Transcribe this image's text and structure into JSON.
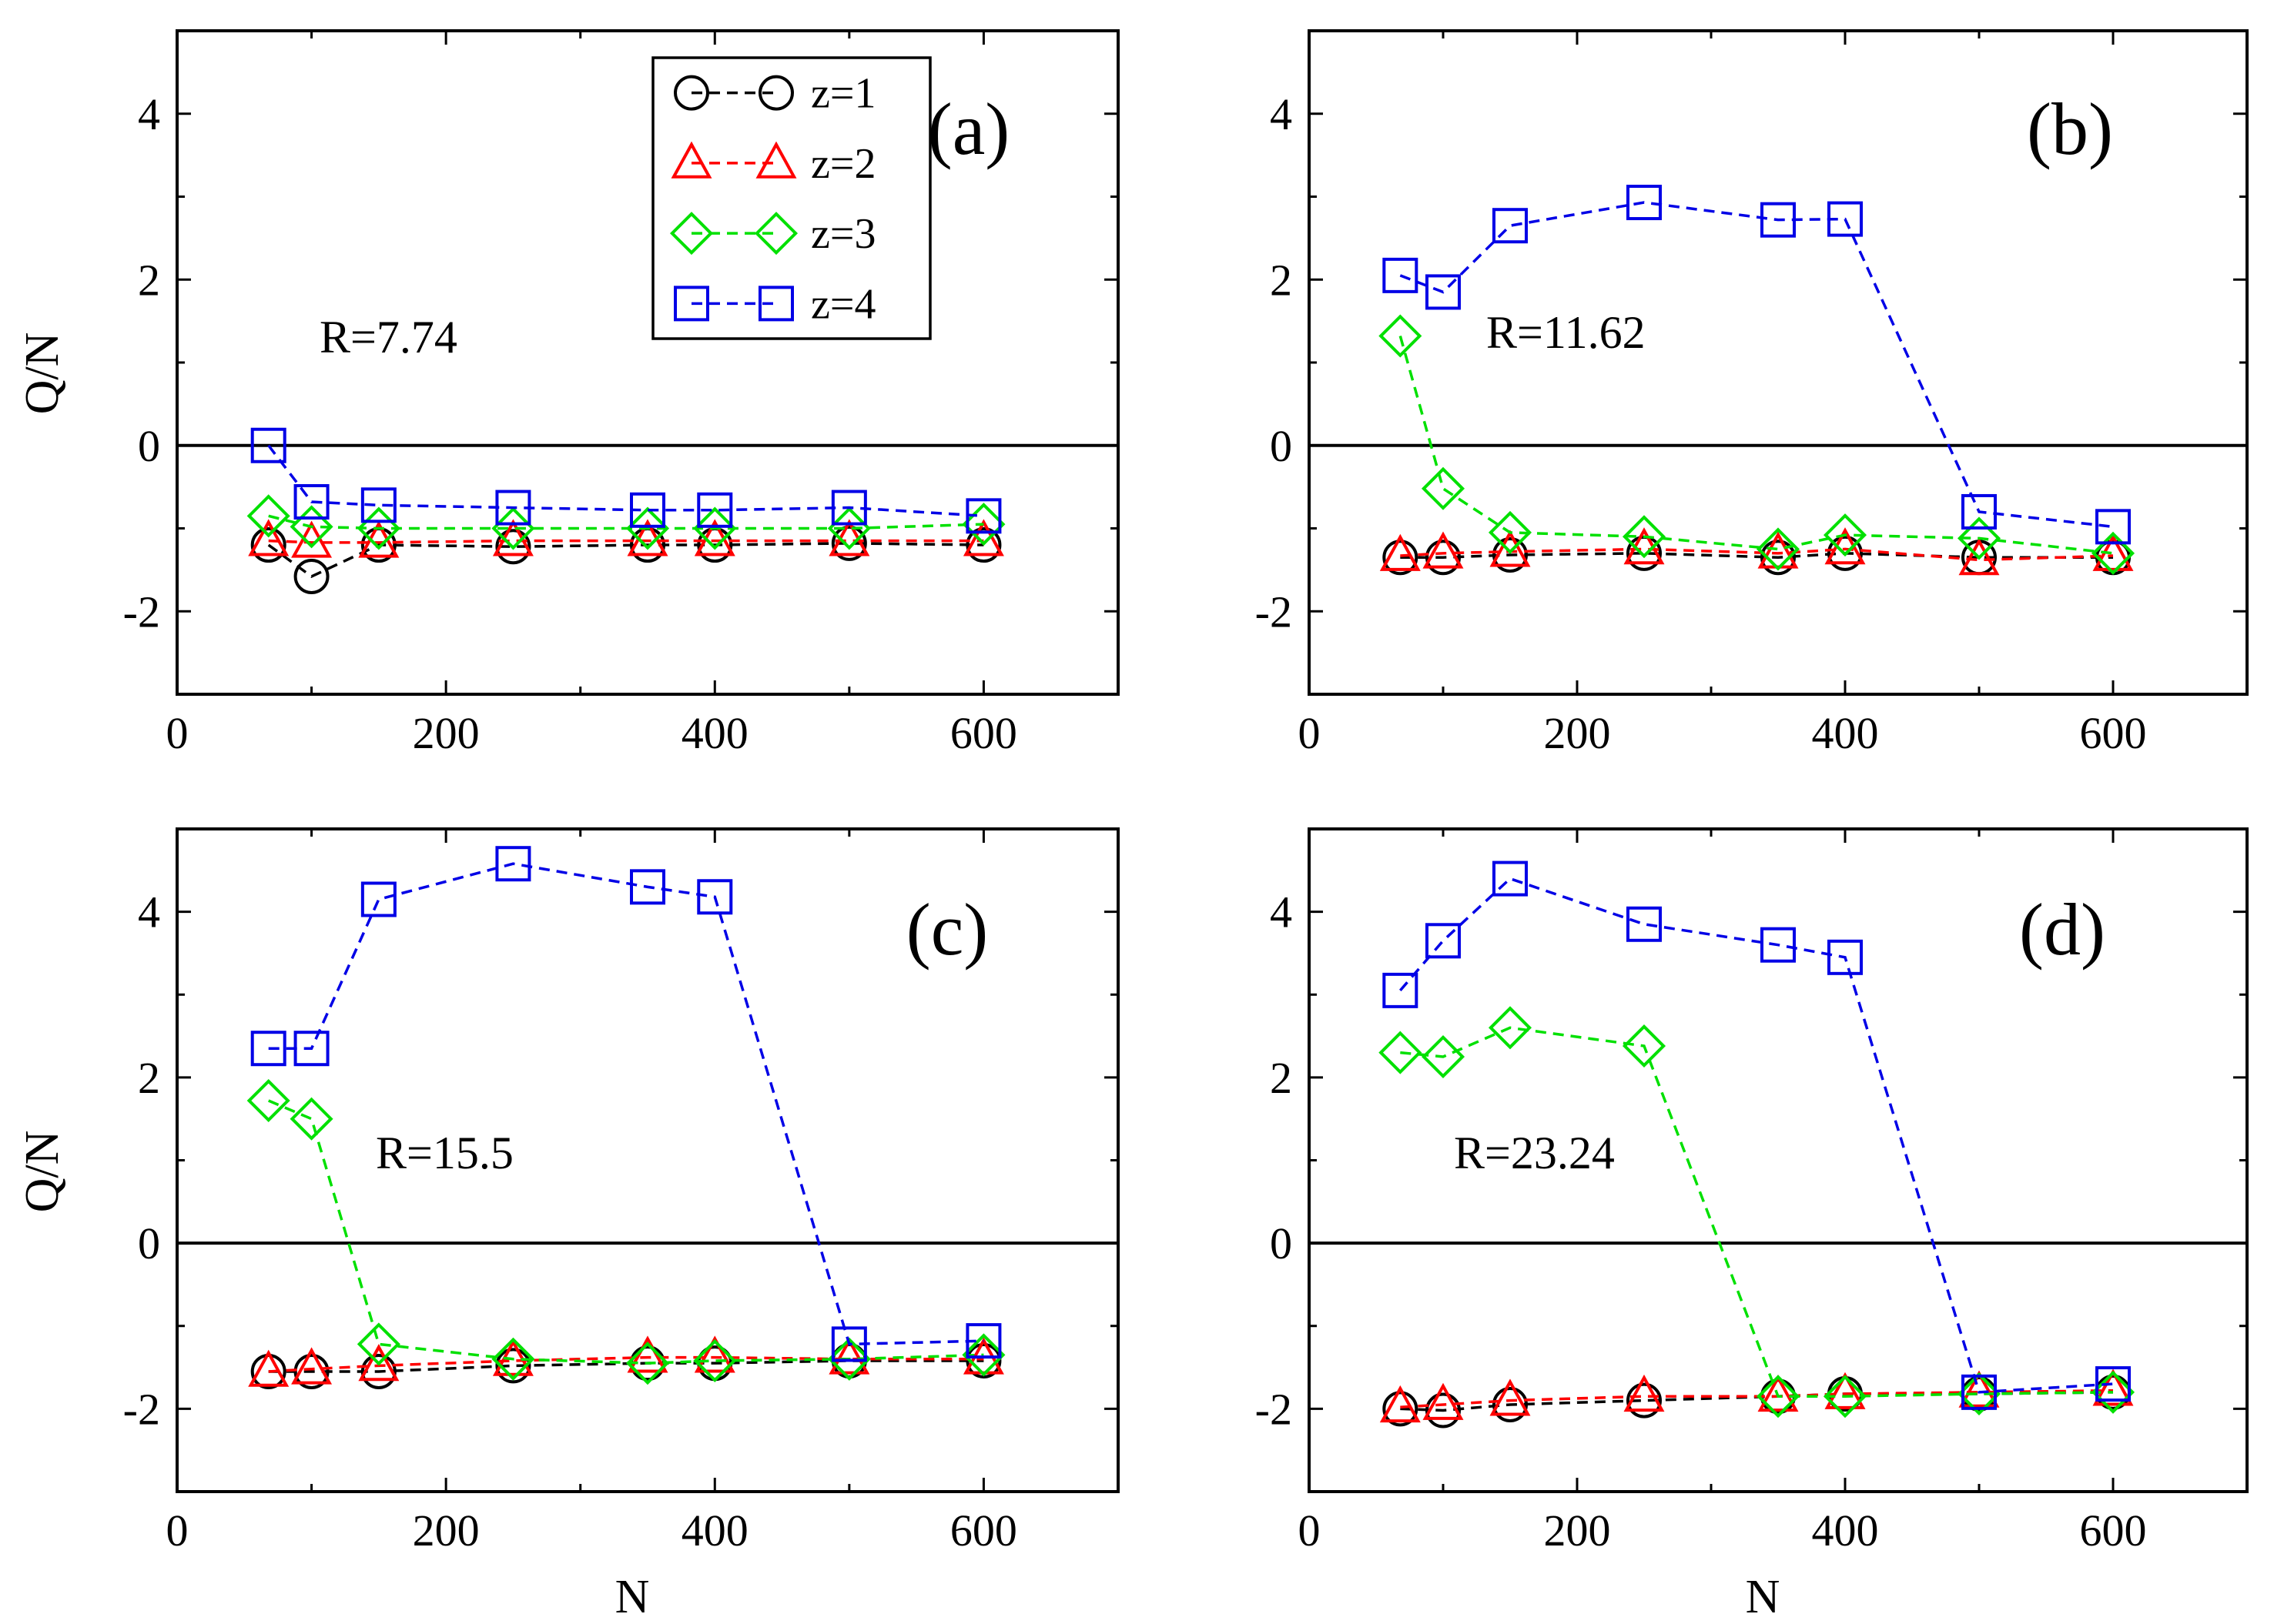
{
  "series_styles": [
    {
      "name": "z=1",
      "color": "#000000",
      "marker": "circle"
    },
    {
      "name": "z=2",
      "color": "#ff0000",
      "marker": "triangle"
    },
    {
      "name": "z=3",
      "color": "#00e000",
      "marker": "diamond"
    },
    {
      "name": "z=4",
      "color": "#0000e6",
      "marker": "square"
    }
  ],
  "chart_data": [
    {
      "type": "line",
      "panel": "(a)",
      "annotation": "R=7.74",
      "xlabel": "",
      "ylabel": "Q/N",
      "xlim": [
        0,
        700
      ],
      "ylim": [
        -3,
        5
      ],
      "xticks": [
        0,
        200,
        400,
        600
      ],
      "yticks": [
        -2,
        0,
        2,
        4
      ],
      "zero_line": true,
      "legend": true,
      "legend_position": "top-right",
      "series": [
        {
          "name": "z=1",
          "x": [
            68,
            100,
            150,
            250,
            350,
            400,
            500,
            600
          ],
          "y": [
            -1.2,
            -1.58,
            -1.2,
            -1.22,
            -1.2,
            -1.2,
            -1.18,
            -1.2
          ]
        },
        {
          "name": "z=2",
          "x": [
            68,
            100,
            150,
            250,
            350,
            400,
            500,
            600
          ],
          "y": [
            -1.15,
            -1.17,
            -1.17,
            -1.15,
            -1.15,
            -1.15,
            -1.15,
            -1.15
          ]
        },
        {
          "name": "z=3",
          "x": [
            68,
            100,
            150,
            250,
            350,
            400,
            500,
            600
          ],
          "y": [
            -0.85,
            -0.98,
            -1.0,
            -1.0,
            -1.0,
            -1.0,
            -1.0,
            -0.95
          ]
        },
        {
          "name": "z=4",
          "x": [
            68,
            100,
            150,
            250,
            350,
            400,
            500,
            600
          ],
          "y": [
            0.0,
            -0.68,
            -0.72,
            -0.75,
            -0.78,
            -0.78,
            -0.75,
            -0.85
          ]
        }
      ]
    },
    {
      "type": "line",
      "panel": "(b)",
      "annotation": "R=11.62",
      "xlabel": "",
      "ylabel": "",
      "xlim": [
        0,
        700
      ],
      "ylim": [
        -3,
        5
      ],
      "xticks": [
        0,
        200,
        400,
        600
      ],
      "yticks": [
        -2,
        0,
        2,
        4
      ],
      "zero_line": true,
      "legend": false,
      "series": [
        {
          "name": "z=1",
          "x": [
            68,
            100,
            150,
            250,
            350,
            400,
            500,
            600
          ],
          "y": [
            -1.35,
            -1.35,
            -1.32,
            -1.3,
            -1.35,
            -1.3,
            -1.35,
            -1.35
          ]
        },
        {
          "name": "z=2",
          "x": [
            68,
            100,
            150,
            250,
            350,
            400,
            500,
            600
          ],
          "y": [
            -1.33,
            -1.3,
            -1.28,
            -1.25,
            -1.3,
            -1.25,
            -1.38,
            -1.33
          ]
        },
        {
          "name": "z=3",
          "x": [
            68,
            100,
            150,
            250,
            350,
            400,
            500,
            600
          ],
          "y": [
            1.32,
            -0.52,
            -1.05,
            -1.1,
            -1.25,
            -1.08,
            -1.12,
            -1.3
          ]
        },
        {
          "name": "z=4",
          "x": [
            68,
            100,
            150,
            250,
            350,
            400,
            500,
            600
          ],
          "y": [
            2.05,
            1.85,
            2.65,
            2.93,
            2.72,
            2.73,
            -0.8,
            -0.98
          ]
        }
      ]
    },
    {
      "type": "line",
      "panel": "(c)",
      "annotation": "R=15.5",
      "xlabel": "N",
      "ylabel": "Q/N",
      "xlim": [
        0,
        700
      ],
      "ylim": [
        -3,
        5
      ],
      "xticks": [
        0,
        200,
        400,
        600
      ],
      "yticks": [
        -2,
        0,
        2,
        4
      ],
      "zero_line": true,
      "legend": false,
      "series": [
        {
          "name": "z=1",
          "x": [
            68,
            100,
            150,
            250,
            350,
            400,
            500,
            600
          ],
          "y": [
            -1.55,
            -1.55,
            -1.55,
            -1.48,
            -1.45,
            -1.45,
            -1.42,
            -1.42
          ]
        },
        {
          "name": "z=2",
          "x": [
            68,
            100,
            150,
            250,
            350,
            400,
            500,
            600
          ],
          "y": [
            -1.55,
            -1.52,
            -1.48,
            -1.42,
            -1.38,
            -1.38,
            -1.4,
            -1.4
          ]
        },
        {
          "name": "z=3",
          "x": [
            68,
            100,
            150,
            250,
            350,
            400,
            500,
            600
          ],
          "y": [
            1.72,
            1.5,
            -1.22,
            -1.4,
            -1.45,
            -1.42,
            -1.4,
            -1.35
          ]
        },
        {
          "name": "z=4",
          "x": [
            68,
            100,
            150,
            250,
            350,
            400,
            500,
            600
          ],
          "y": [
            2.35,
            2.35,
            4.15,
            4.58,
            4.3,
            4.18,
            -1.22,
            -1.18
          ]
        }
      ]
    },
    {
      "type": "line",
      "panel": "(d)",
      "annotation": "R=23.24",
      "xlabel": "N",
      "ylabel": "",
      "xlim": [
        0,
        700
      ],
      "ylim": [
        -3,
        5
      ],
      "xticks": [
        0,
        200,
        400,
        600
      ],
      "yticks": [
        -2,
        0,
        2,
        4
      ],
      "zero_line": true,
      "legend": false,
      "series": [
        {
          "name": "z=1",
          "x": [
            68,
            100,
            150,
            250,
            350,
            400,
            500,
            600
          ],
          "y": [
            -2.0,
            -2.02,
            -1.95,
            -1.9,
            -1.85,
            -1.82,
            -1.82,
            -1.8
          ]
        },
        {
          "name": "z=2",
          "x": [
            68,
            100,
            150,
            250,
            350,
            400,
            500,
            600
          ],
          "y": [
            -1.98,
            -1.95,
            -1.9,
            -1.85,
            -1.85,
            -1.82,
            -1.8,
            -1.78
          ]
        },
        {
          "name": "z=3",
          "x": [
            68,
            100,
            150,
            250,
            350,
            400,
            500,
            600
          ],
          "y": [
            2.3,
            2.25,
            2.6,
            2.38,
            -1.85,
            -1.85,
            -1.82,
            -1.8
          ]
        },
        {
          "name": "z=4",
          "x": [
            68,
            100,
            150,
            250,
            350,
            400,
            500,
            600
          ],
          "y": [
            3.05,
            3.65,
            4.4,
            3.85,
            3.6,
            3.45,
            -1.8,
            -1.7
          ]
        }
      ]
    }
  ]
}
